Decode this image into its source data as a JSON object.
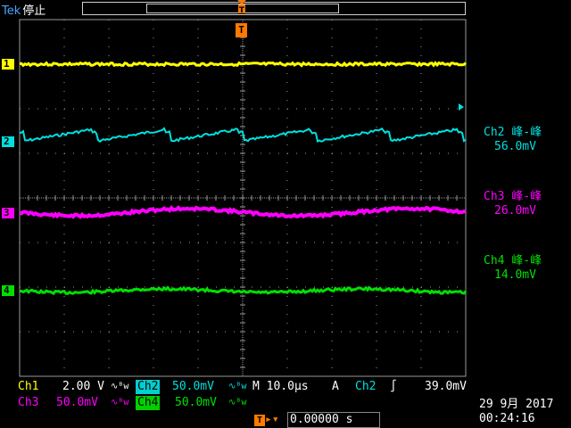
{
  "header": {
    "brand": "Tek",
    "state": "停止"
  },
  "markers": {
    "trigger_position": "T",
    "trigger_point": "T",
    "ch1": "1",
    "ch2": "2",
    "ch3": "3",
    "ch4": "4"
  },
  "colors": {
    "ch1": "#ffff00",
    "ch2": "#00e0e0",
    "ch3": "#ff00ff",
    "ch4": "#00e000",
    "trigger": "#ff7a00",
    "grid": "#9a9a9a"
  },
  "measurements": [
    {
      "name": "Ch2 峰-峰",
      "value": "56.0mV",
      "color": "#00e0e0"
    },
    {
      "name": "Ch3 峰-峰",
      "value": "26.0mV",
      "color": "#ff00ff"
    },
    {
      "name": "Ch4 峰-峰",
      "value": "14.0mV",
      "color": "#00e000"
    }
  ],
  "status": {
    "ch1_label": "Ch1",
    "ch1_scale": "2.00 V",
    "ch2_label": "Ch2",
    "ch2_scale": "50.0mV",
    "ch3_label": "Ch3",
    "ch3_scale": "50.0mV",
    "ch4_label": "Ch4",
    "ch4_scale": "50.0mV",
    "bw_symbol": "∿ᴮw",
    "timebase": "M 10.0µs",
    "trigger_mode": "A",
    "trigger_source": "Ch2",
    "trigger_slope": "∫",
    "trigger_level": "39.0mV",
    "trigger_offset": "0.00000 s",
    "date": "29 9月  2017",
    "time": "00:24:16"
  }
}
